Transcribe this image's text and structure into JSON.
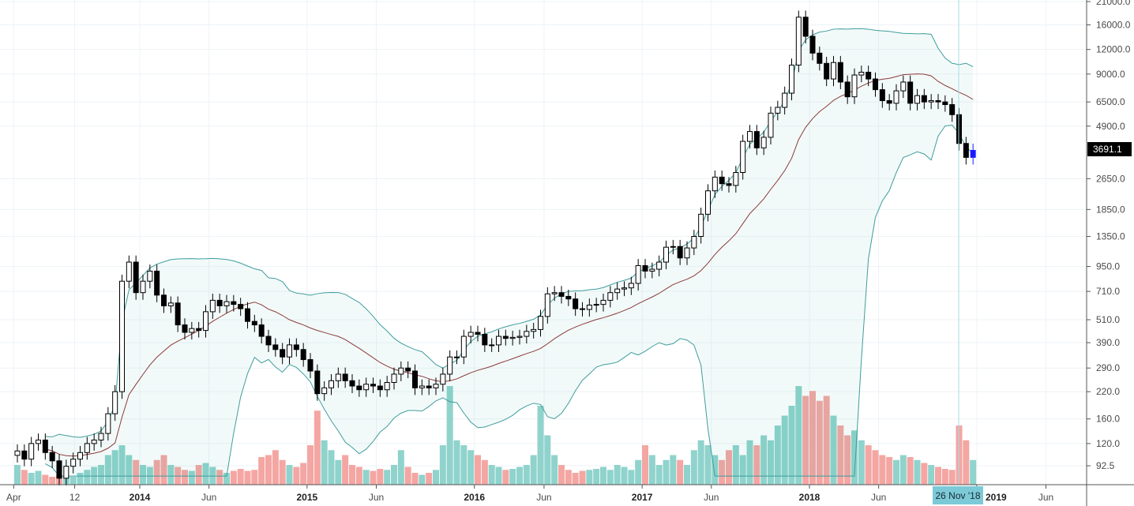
{
  "chart_data": {
    "type": "candlestick",
    "scale": "log",
    "period": "semi-monthly",
    "start": "2013-04",
    "ylim": [
      80,
      21000
    ],
    "grid": true,
    "y_ticks": [
      "21000.0",
      "16000.0",
      "12000.0",
      "9000.0",
      "6500.0",
      "4900.0",
      "2650.0",
      "1850.0",
      "1350.0",
      "950.0",
      "710.0",
      "510.0",
      "390.0",
      "290.0",
      "220.0",
      "160.0",
      "120.0",
      "92.5"
    ],
    "x_ticks": [
      {
        "label": "Apr",
        "date": "2013-04-01",
        "bold": false
      },
      {
        "label": "12",
        "date": "2013-08-12",
        "bold": false
      },
      {
        "label": "2014",
        "date": "2014-01-01",
        "bold": true
      },
      {
        "label": "Jun",
        "date": "2014-06-01",
        "bold": false
      },
      {
        "label": "2015",
        "date": "2015-01-01",
        "bold": true
      },
      {
        "label": "Jun",
        "date": "2015-06-01",
        "bold": false
      },
      {
        "label": "2016",
        "date": "2016-01-01",
        "bold": true
      },
      {
        "label": "Jun",
        "date": "2016-06-01",
        "bold": false
      },
      {
        "label": "2017",
        "date": "2017-01-01",
        "bold": true
      },
      {
        "label": "Jun",
        "date": "2017-06-01",
        "bold": false
      },
      {
        "label": "2018",
        "date": "2018-01-01",
        "bold": true
      },
      {
        "label": "Jun",
        "date": "2018-06-01",
        "bold": false
      },
      {
        "label": "2019",
        "date": "2019-01-01",
        "bold": true
      },
      {
        "label": "Jun",
        "date": "2019-06-01",
        "bold": false
      }
    ],
    "crosshair_label": "26 Nov '18",
    "last_price": "3691.1",
    "closes": [
      110,
      100,
      120,
      125,
      108,
      98,
      80,
      92,
      100,
      108,
      120,
      125,
      135,
      170,
      220,
      800,
      1000,
      700,
      800,
      900,
      680,
      600,
      620,
      480,
      440,
      460,
      450,
      560,
      640,
      600,
      630,
      610,
      580,
      500,
      480,
      420,
      380,
      360,
      330,
      380,
      360,
      320,
      280,
      215,
      230,
      250,
      270,
      250,
      235,
      225,
      240,
      235,
      225,
      245,
      270,
      290,
      280,
      230,
      235,
      230,
      240,
      270,
      330,
      330,
      420,
      440,
      430,
      380,
      380,
      420,
      410,
      415,
      420,
      445,
      455,
      530,
      690,
      700,
      670,
      650,
      580,
      575,
      605,
      610,
      640,
      700,
      730,
      740,
      780,
      960,
      900,
      920,
      1000,
      1190,
      1200,
      1050,
      1180,
      1350,
      1750,
      2300,
      2700,
      2500,
      2450,
      2850,
      4100,
      4600,
      3800,
      4300,
      5700,
      6100,
      7200,
      10000,
      17500,
      14000,
      11500,
      10200,
      8500,
      10300,
      8200,
      6900,
      8900,
      9200,
      8500,
      7500,
      6600,
      6400,
      7400,
      8200,
      6400,
      7000,
      6500,
      6600,
      6500,
      6300,
      5600,
      4000,
      3400,
      3691.1
    ],
    "volume_relative": [
      20,
      15,
      12,
      14,
      10,
      8,
      10,
      9,
      8,
      12,
      15,
      18,
      20,
      30,
      35,
      40,
      30,
      25,
      20,
      18,
      25,
      30,
      20,
      18,
      15,
      14,
      20,
      22,
      18,
      15,
      12,
      14,
      16,
      14,
      15,
      28,
      30,
      35,
      25,
      20,
      18,
      22,
      40,
      75,
      45,
      35,
      25,
      30,
      20,
      18,
      15,
      14,
      16,
      15,
      20,
      35,
      18,
      12,
      10,
      12,
      15,
      40,
      100,
      45,
      40,
      35,
      30,
      25,
      20,
      18,
      15,
      16,
      18,
      20,
      30,
      80,
      50,
      30,
      20,
      15,
      12,
      14,
      15,
      16,
      18,
      15,
      20,
      18,
      15,
      25,
      40,
      30,
      20,
      25,
      30,
      25,
      20,
      35,
      45,
      40,
      30,
      25,
      35,
      40,
      30,
      45,
      40,
      50,
      45,
      60,
      70,
      80,
      100,
      90,
      95,
      85,
      90,
      70,
      60,
      50,
      55,
      45,
      40,
      35,
      30,
      28,
      25,
      30,
      28,
      25,
      22,
      20,
      18,
      16,
      15,
      60,
      45,
      25
    ],
    "indicators": [
      "Bollinger Bands (20)",
      "Volume"
    ],
    "colors": {
      "up_volume": "#8fd3cc",
      "down_volume": "#f4a6a3",
      "band": "#3f9d9d",
      "basis": "#8b3a3a",
      "crosshair": "#a6dce6",
      "label_bg": "#7ccad8",
      "last_price_bg": "#000000"
    }
  }
}
